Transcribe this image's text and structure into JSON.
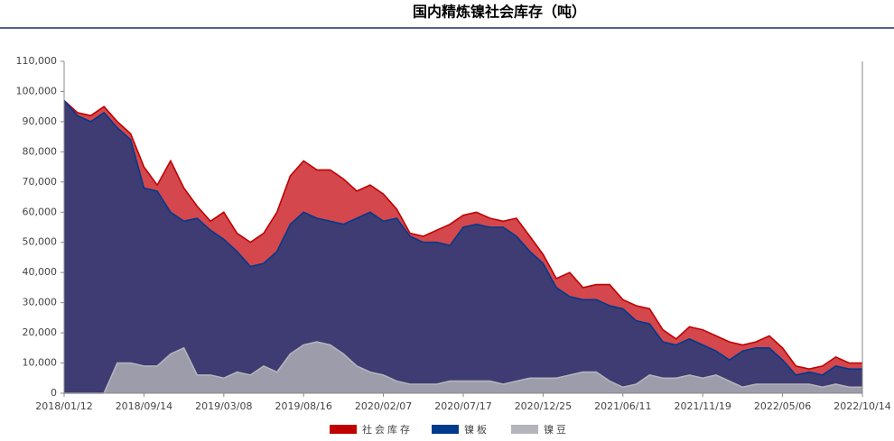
{
  "chart_data": {
    "type": "area",
    "title": "国内精炼镍社会库存（吨）",
    "categories": [
      "2018/01/12",
      null,
      null,
      null,
      null,
      null,
      "2018/09/14",
      null,
      null,
      null,
      null,
      null,
      "2019/03/08",
      null,
      null,
      null,
      null,
      null,
      "2019/08/16",
      null,
      null,
      null,
      null,
      null,
      "2020/02/07",
      null,
      null,
      null,
      null,
      null,
      "2020/07/17",
      null,
      null,
      null,
      null,
      null,
      "2020/12/25",
      null,
      null,
      null,
      null,
      null,
      "2021/06/11",
      null,
      null,
      null,
      null,
      null,
      "2021/11/19",
      null,
      null,
      null,
      null,
      null,
      "2022/05/06",
      null,
      null,
      null,
      null,
      null,
      "2022/10/14"
    ],
    "series": [
      {
        "name": "社会库存",
        "color": "#c00000",
        "fill": "#d4474c",
        "values": [
          97000,
          93000,
          92000,
          95000,
          90000,
          86000,
          75000,
          69000,
          77000,
          68000,
          62000,
          57000,
          60000,
          53000,
          50000,
          53000,
          60000,
          72000,
          77000,
          74000,
          74000,
          71000,
          67000,
          69000,
          66000,
          61000,
          53000,
          52000,
          54000,
          56000,
          59000,
          60000,
          58000,
          57000,
          58000,
          52000,
          46000,
          38000,
          40000,
          35000,
          36000,
          36000,
          31000,
          29000,
          28000,
          21000,
          18000,
          22000,
          21000,
          19000,
          17000,
          16000,
          17000,
          19000,
          15000,
          9000,
          8000,
          9000,
          12000,
          10000,
          10000
        ]
      },
      {
        "name": "镍板",
        "color": "#003a8c",
        "fill": "#3e3c72",
        "values": [
          97000,
          92000,
          90000,
          93000,
          88000,
          84000,
          68000,
          67000,
          60000,
          57000,
          58000,
          54000,
          51000,
          47000,
          42000,
          43000,
          47000,
          56000,
          60000,
          58000,
          57000,
          56000,
          58000,
          60000,
          57000,
          58000,
          52000,
          50000,
          50000,
          49000,
          55000,
          56000,
          55000,
          55000,
          52000,
          47000,
          43000,
          35000,
          32000,
          31000,
          31000,
          29000,
          28000,
          24000,
          23000,
          17000,
          16000,
          18000,
          16000,
          14000,
          11000,
          14000,
          15000,
          15000,
          11000,
          6000,
          7000,
          6000,
          9000,
          8000,
          8000
        ]
      },
      {
        "name": "镍豆",
        "color": "#b4b4bc",
        "fill": "#9c9cab",
        "values": [
          0,
          0,
          0,
          0,
          10000,
          10000,
          9000,
          9000,
          13000,
          15000,
          6000,
          6000,
          5000,
          7000,
          6000,
          9000,
          7000,
          13000,
          16000,
          17000,
          16000,
          13000,
          9000,
          7000,
          6000,
          4000,
          3000,
          3000,
          3000,
          4000,
          4000,
          4000,
          4000,
          3000,
          4000,
          5000,
          5000,
          5000,
          6000,
          7000,
          7000,
          4000,
          2000,
          3000,
          6000,
          5000,
          5000,
          6000,
          5000,
          6000,
          4000,
          2000,
          3000,
          3000,
          3000,
          3000,
          3000,
          2000,
          3000,
          2000,
          2000
        ]
      }
    ],
    "ylim": [
      0,
      110000
    ],
    "yticks": [
      0,
      {
        "value": 10000,
        "label": "10,000"
      },
      {
        "value": 20000,
        "label": "20,000"
      },
      {
        "value": 30000,
        "label": "30,000"
      },
      {
        "value": 40000,
        "label": "40,000"
      },
      {
        "value": 50000,
        "label": "50,000"
      },
      {
        "value": 60000,
        "label": "60,000"
      },
      {
        "value": 70000,
        "label": "70,000"
      },
      {
        "value": 80000,
        "label": "80,000"
      },
      {
        "value": 90000,
        "label": "90,000"
      },
      {
        "value": 100000,
        "label": "100,000"
      },
      {
        "value": 110000,
        "label": "110,000"
      }
    ],
    "legend": "bottom"
  }
}
